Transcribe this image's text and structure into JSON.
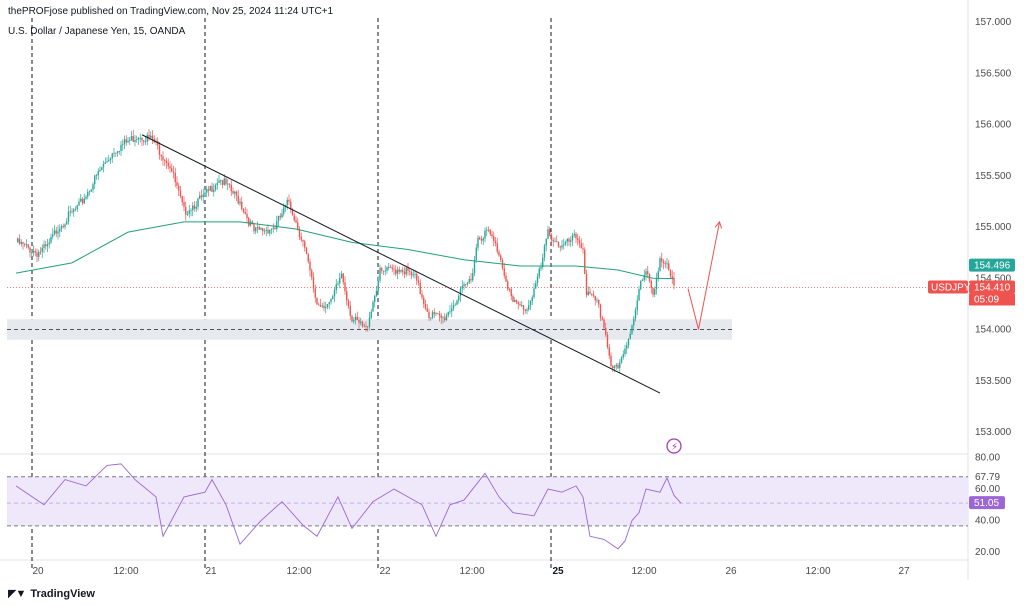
{
  "header": {
    "publish_text": "thePROFjose published on TradingView.com, Nov 25, 2024 11:24 UTC+1",
    "symbol_text": "U.S. Dollar / Japanese Yen, 15, OANDA"
  },
  "brand": {
    "name": "TradingView",
    "logo_icon": "tradingview-logo-icon"
  },
  "colors": {
    "up": "#26a69a",
    "down": "#ef5350",
    "ma": "#22a07a",
    "rsi": "#9c66d6",
    "rsi_band": "#efe8fb",
    "trendline": "#131722",
    "zone": "#e6eaee",
    "axis_text": "#4a4a4a"
  },
  "chart_data": [
    {
      "type": "candlestick",
      "symbol": "USDJPY",
      "timeframe": "15",
      "x_ticks": [
        "20",
        "12:00",
        "21",
        "12:00",
        "22",
        "12:00",
        "25",
        "12:00",
        "26",
        "12:00",
        "27"
      ],
      "bold_x_tick": "25",
      "y_ticks": [
        157.0,
        156.5,
        156.0,
        155.5,
        155.0,
        154.5,
        154.0,
        153.5,
        153.0
      ],
      "y_tick_labels": [
        "157.000",
        "156.500",
        "156.000",
        "155.500",
        "155.000",
        "154.500",
        "154.000",
        "153.500",
        "153.000"
      ],
      "ylim": [
        152.87,
        157.1
      ],
      "price_path": [
        {
          "x": 0.0,
          "y": 154.85
        },
        {
          "x": 3.0,
          "y": 154.75
        },
        {
          "x": 4.5,
          "y": 154.8
        },
        {
          "x": 6.0,
          "y": 155.0
        },
        {
          "x": 9.0,
          "y": 155.2
        },
        {
          "x": 12.0,
          "y": 155.55
        },
        {
          "x": 14.0,
          "y": 155.75
        },
        {
          "x": 17.5,
          "y": 155.9
        },
        {
          "x": 19.5,
          "y": 155.85
        },
        {
          "x": 22.0,
          "y": 155.6
        },
        {
          "x": 24.0,
          "y": 155.15
        },
        {
          "x": 27.0,
          "y": 155.3
        },
        {
          "x": 29.0,
          "y": 155.48
        },
        {
          "x": 32.0,
          "y": 155.25
        },
        {
          "x": 34.0,
          "y": 154.95
        },
        {
          "x": 37.0,
          "y": 155.0
        },
        {
          "x": 39.0,
          "y": 155.25
        },
        {
          "x": 41.0,
          "y": 154.85
        },
        {
          "x": 43.0,
          "y": 154.25
        },
        {
          "x": 45.0,
          "y": 154.25
        },
        {
          "x": 46.5,
          "y": 154.55
        },
        {
          "x": 48.0,
          "y": 154.1
        },
        {
          "x": 50.0,
          "y": 154.0
        },
        {
          "x": 52.0,
          "y": 154.55
        },
        {
          "x": 55.0,
          "y": 154.6
        },
        {
          "x": 57.0,
          "y": 154.5
        },
        {
          "x": 59.0,
          "y": 154.15
        },
        {
          "x": 61.0,
          "y": 154.1
        },
        {
          "x": 63.5,
          "y": 154.35
        },
        {
          "x": 65.0,
          "y": 154.5
        },
        {
          "x": 66.0,
          "y": 154.9
        },
        {
          "x": 67.5,
          "y": 154.95
        },
        {
          "x": 69.0,
          "y": 154.75
        },
        {
          "x": 71.0,
          "y": 154.25
        },
        {
          "x": 73.0,
          "y": 154.2
        },
        {
          "x": 75.0,
          "y": 154.6
        },
        {
          "x": 76.0,
          "y": 154.95
        },
        {
          "x": 78.0,
          "y": 154.8
        },
        {
          "x": 80.0,
          "y": 154.9
        },
        {
          "x": 81.0,
          "y": 154.8
        },
        {
          "x": 81.5,
          "y": 154.35
        },
        {
          "x": 83.0,
          "y": 154.25
        },
        {
          "x": 84.0,
          "y": 154.05
        },
        {
          "x": 85.0,
          "y": 153.65
        },
        {
          "x": 86.0,
          "y": 153.6
        },
        {
          "x": 87.0,
          "y": 153.8
        },
        {
          "x": 88.0,
          "y": 154.05
        },
        {
          "x": 89.0,
          "y": 154.4
        },
        {
          "x": 90.0,
          "y": 154.55
        },
        {
          "x": 91.0,
          "y": 154.35
        },
        {
          "x": 92.0,
          "y": 154.7
        },
        {
          "x": 93.0,
          "y": 154.6
        },
        {
          "x": 94.0,
          "y": 154.41
        }
      ],
      "moving_average": [
        {
          "x": 0,
          "y": 154.55
        },
        {
          "x": 8,
          "y": 154.65
        },
        {
          "x": 16,
          "y": 154.95
        },
        {
          "x": 24,
          "y": 155.05
        },
        {
          "x": 32,
          "y": 155.05
        },
        {
          "x": 40,
          "y": 154.98
        },
        {
          "x": 48,
          "y": 154.85
        },
        {
          "x": 56,
          "y": 154.78
        },
        {
          "x": 64,
          "y": 154.68
        },
        {
          "x": 72,
          "y": 154.62
        },
        {
          "x": 80,
          "y": 154.62
        },
        {
          "x": 86,
          "y": 154.58
        },
        {
          "x": 91,
          "y": 154.5
        },
        {
          "x": 94,
          "y": 154.496
        }
      ],
      "trendline": {
        "from": {
          "x": 18.0,
          "y": 155.9
        },
        "to": {
          "x": 92.0,
          "y": 153.38
        }
      },
      "support_zone": {
        "from": 153.9,
        "to": 154.1,
        "level": 154.0
      },
      "projection_arrow": [
        {
          "x": 96.0,
          "y": 154.4
        },
        {
          "x": 97.5,
          "y": 154.0
        },
        {
          "x": 100.5,
          "y": 155.05
        }
      ],
      "current_price": {
        "value": 154.41,
        "label": "154.410",
        "symbol_tag": "USDJPY",
        "countdown": "05:09"
      },
      "ma_value": {
        "value": 154.496,
        "label": "154.496"
      },
      "events": [
        {
          "x": 94.0,
          "icon": "lightning-event-icon"
        }
      ]
    },
    {
      "type": "line",
      "name": "RSI",
      "y_ticks": [
        80,
        60,
        40,
        20
      ],
      "y_tick_labels": [
        "80.00",
        "60.00",
        "40.00",
        "20.00"
      ],
      "ylim": [
        15.0,
        81.0
      ],
      "band": {
        "upper": 67.79,
        "lower": 50.59,
        "upper_label": "67.79",
        "lower_label": "50.59"
      },
      "current": {
        "value": 51.05,
        "label": "51.05"
      },
      "path": [
        {
          "x": 0,
          "y": 62
        },
        {
          "x": 4,
          "y": 50
        },
        {
          "x": 7,
          "y": 66
        },
        {
          "x": 10,
          "y": 62
        },
        {
          "x": 13,
          "y": 75
        },
        {
          "x": 15,
          "y": 76
        },
        {
          "x": 17,
          "y": 66
        },
        {
          "x": 20,
          "y": 55
        },
        {
          "x": 21,
          "y": 30
        },
        {
          "x": 24,
          "y": 55
        },
        {
          "x": 27,
          "y": 58
        },
        {
          "x": 28,
          "y": 66
        },
        {
          "x": 30,
          "y": 50
        },
        {
          "x": 32,
          "y": 25
        },
        {
          "x": 35,
          "y": 40
        },
        {
          "x": 38,
          "y": 52
        },
        {
          "x": 41,
          "y": 37
        },
        {
          "x": 43,
          "y": 30
        },
        {
          "x": 46,
          "y": 55
        },
        {
          "x": 48,
          "y": 35
        },
        {
          "x": 51,
          "y": 52
        },
        {
          "x": 54,
          "y": 60
        },
        {
          "x": 56,
          "y": 55
        },
        {
          "x": 58,
          "y": 50
        },
        {
          "x": 60,
          "y": 30
        },
        {
          "x": 62,
          "y": 50
        },
        {
          "x": 64,
          "y": 53
        },
        {
          "x": 67,
          "y": 70
        },
        {
          "x": 69,
          "y": 55
        },
        {
          "x": 71,
          "y": 45
        },
        {
          "x": 74,
          "y": 43
        },
        {
          "x": 76,
          "y": 60
        },
        {
          "x": 78,
          "y": 58
        },
        {
          "x": 80,
          "y": 62
        },
        {
          "x": 81,
          "y": 55
        },
        {
          "x": 82,
          "y": 30
        },
        {
          "x": 84,
          "y": 28
        },
        {
          "x": 86,
          "y": 22
        },
        {
          "x": 87,
          "y": 27
        },
        {
          "x": 88,
          "y": 40
        },
        {
          "x": 89,
          "y": 45
        },
        {
          "x": 90,
          "y": 60
        },
        {
          "x": 92,
          "y": 58
        },
        {
          "x": 93,
          "y": 67
        },
        {
          "x": 94,
          "y": 56
        },
        {
          "x": 95,
          "y": 51
        }
      ]
    }
  ]
}
